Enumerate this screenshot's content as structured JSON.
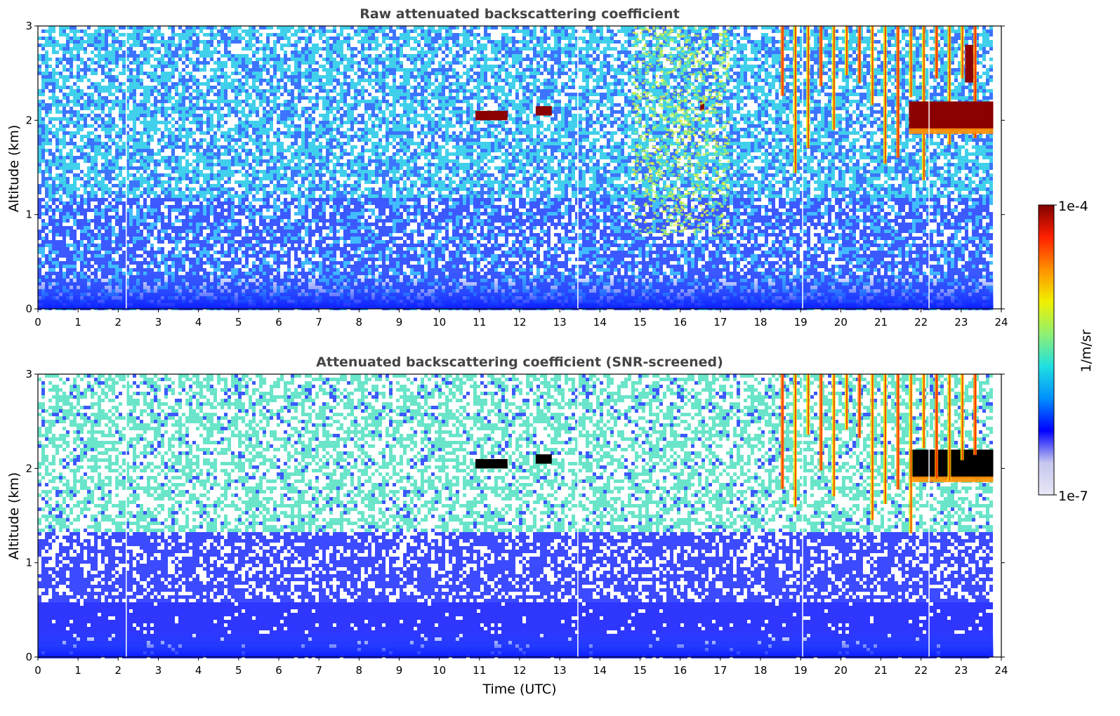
{
  "chart_data": [
    {
      "type": "heatmap",
      "title": "Raw attenuated backscattering coefficient",
      "xlabel": "",
      "ylabel": "Altitude (km)",
      "xlim": [
        0,
        24
      ],
      "ylim": [
        0,
        3
      ],
      "x_ticks": [
        "0",
        "1",
        "2",
        "3",
        "4",
        "5",
        "6",
        "7",
        "8",
        "9",
        "10",
        "11",
        "12",
        "13",
        "14",
        "15",
        "16",
        "17",
        "18",
        "19",
        "20",
        "21",
        "22",
        "23",
        "24"
      ],
      "y_ticks": [
        "0",
        "1",
        "2",
        "3"
      ],
      "data_end_time": 23.8,
      "surface_noise_top_km": 0.4,
      "features": [
        {
          "name": "cloud patches",
          "time": [
            10.9,
            11.7
          ],
          "altitude_km": 2.05,
          "level": "1e-4"
        },
        {
          "name": "cloud patches",
          "time": [
            12.4,
            12.8
          ],
          "altitude_km": 2.1,
          "level": "1e-4"
        },
        {
          "name": "cloud patch",
          "time": [
            16.5,
            16.6
          ],
          "altitude_km": 2.15,
          "level": "1e-4"
        },
        {
          "name": "high-signal region",
          "time": [
            14.8,
            17.2
          ],
          "altitude_km": [
            0.8,
            3.0
          ],
          "level": "1e-5"
        },
        {
          "name": "fall streaks",
          "time": [
            18.5,
            23.3
          ],
          "altitude_km": [
            1.3,
            3.0
          ],
          "level": "1e-5 to 1e-4"
        },
        {
          "name": "cloud layer",
          "time": [
            21.7,
            23.8
          ],
          "altitude_km": [
            1.9,
            2.2
          ],
          "level": "1e-4"
        },
        {
          "name": "cloud streak",
          "time": [
            23.1,
            23.3
          ],
          "altitude_km": [
            2.4,
            2.8
          ],
          "level": "1e-4"
        }
      ]
    },
    {
      "type": "heatmap",
      "title": "Attenuated backscattering coefficient (SNR-screened)",
      "xlabel": "Time (UTC)",
      "ylabel": "Altitude (km)",
      "xlim": [
        0,
        24
      ],
      "ylim": [
        0,
        3
      ],
      "x_ticks": [
        "0",
        "1",
        "2",
        "3",
        "4",
        "5",
        "6",
        "7",
        "8",
        "9",
        "10",
        "11",
        "12",
        "13",
        "14",
        "15",
        "16",
        "17",
        "18",
        "19",
        "20",
        "21",
        "22",
        "23",
        "24"
      ],
      "y_ticks": [
        "0",
        "1",
        "2",
        "3"
      ],
      "data_end_time": 23.8,
      "screened_low_layer_top_km": 0.27,
      "features": [
        {
          "name": "saturated cloud patches",
          "time": [
            10.9,
            11.7
          ],
          "altitude_km": 2.05,
          "level": "above 1e-4"
        },
        {
          "name": "saturated cloud patches",
          "time": [
            12.4,
            12.8
          ],
          "altitude_km": 2.1,
          "level": "above 1e-4"
        },
        {
          "name": "saturated cloud layer",
          "time": [
            21.7,
            23.8
          ],
          "altitude_km": [
            1.9,
            2.2
          ],
          "level": "above 1e-4"
        },
        {
          "name": "fall streaks",
          "time": [
            18.5,
            23.3
          ],
          "altitude_km": [
            1.3,
            3.0
          ],
          "level": "1e-5 to 1e-4"
        }
      ]
    }
  ],
  "colorbar": {
    "label": "1/m/sr",
    "max_label": "1e-4",
    "min_label": "1e-7",
    "scale": "log",
    "colormap": "jet",
    "colors": [
      "#e8e8f6",
      "#c6c6ef",
      "#0000ff",
      "#0090ff",
      "#20e0e0",
      "#90f070",
      "#f0f000",
      "#ff9000",
      "#ff2000",
      "#800000"
    ]
  }
}
